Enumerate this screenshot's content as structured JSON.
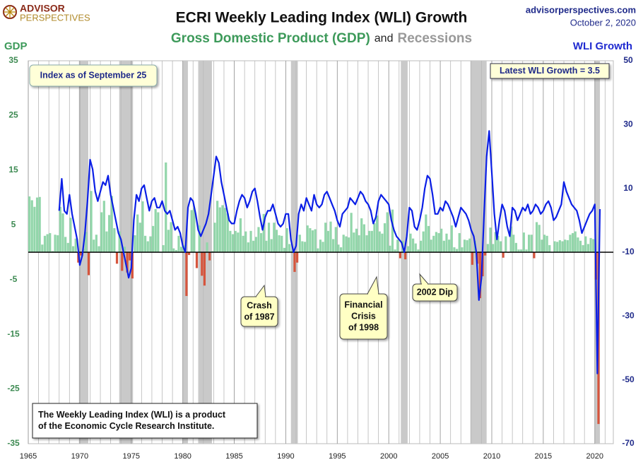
{
  "chart_data": {
    "type": "bar-line",
    "title": "ECRI Weekly Leading Index (WLI) Growth",
    "subtitle": [
      "Gross Domestic Product (GDP)",
      "and",
      "Recessions"
    ],
    "brand": [
      "ADVISOR",
      "PERSPECTIVES"
    ],
    "source": "advisorperspectives.com",
    "date": "October 2, 2020",
    "y_label": "GDP",
    "y2_label": "WLI Growth",
    "xlim": [
      1965,
      2021.8
    ],
    "xticks": [
      1965,
      1970,
      1975,
      1980,
      1985,
      1990,
      1995,
      2000,
      2005,
      2010,
      2015,
      2020
    ],
    "x_minor_ticks": [
      1966,
      1967,
      1968,
      1969,
      1971,
      1972,
      1973,
      1974,
      1976,
      1977,
      1978,
      1979,
      1981,
      1982,
      1983,
      1984,
      1986,
      1987,
      1988,
      1989,
      1991,
      1992,
      1993,
      1994,
      1996,
      1997,
      1998,
      1999,
      2001,
      2002,
      2003,
      2004,
      2006,
      2007,
      2008,
      2009,
      2011,
      2012,
      2013,
      2014,
      2016,
      2017,
      2018,
      2019,
      2021
    ],
    "grid": "x",
    "ylim": [
      -35,
      35
    ],
    "yticks": [
      -35,
      -25,
      -15,
      -5,
      5,
      15,
      25,
      35
    ],
    "y2lim": [
      -70,
      50
    ],
    "y2ticks": [
      -70,
      -50,
      -30,
      -10,
      10,
      30,
      50
    ],
    "recession_color": "#c9c9c9",
    "recessions": [
      [
        1969.92,
        1970.83
      ],
      [
        1973.83,
        1975.17
      ],
      [
        1980.0,
        1980.5
      ],
      [
        1981.5,
        1982.83
      ],
      [
        1990.5,
        1991.17
      ],
      [
        2001.17,
        2001.83
      ],
      [
        2007.92,
        2009.5
      ],
      [
        2020.0,
        2020.5
      ]
    ],
    "x": [
      1965,
      1965.25,
      1965.5,
      1965.75,
      1966,
      1966.25,
      1966.5,
      1966.75,
      1967,
      1967.25,
      1967.5,
      1967.75,
      1968,
      1968.25,
      1968.5,
      1968.75,
      1969,
      1969.25,
      1969.5,
      1969.75,
      1970,
      1970.25,
      1970.5,
      1970.75,
      1971,
      1971.25,
      1971.5,
      1971.75,
      1972,
      1972.25,
      1972.5,
      1972.75,
      1973,
      1973.25,
      1973.5,
      1973.75,
      1974,
      1974.25,
      1974.5,
      1974.75,
      1975,
      1975.25,
      1975.5,
      1975.75,
      1976,
      1976.25,
      1976.5,
      1976.75,
      1977,
      1977.25,
      1977.5,
      1977.75,
      1978,
      1978.25,
      1978.5,
      1978.75,
      1979,
      1979.25,
      1979.5,
      1979.75,
      1980,
      1980.25,
      1980.5,
      1980.75,
      1981,
      1981.25,
      1981.5,
      1981.75,
      1982,
      1982.25,
      1982.5,
      1982.75,
      1983,
      1983.25,
      1983.5,
      1983.75,
      1984,
      1984.25,
      1984.5,
      1984.75,
      1985,
      1985.25,
      1985.5,
      1985.75,
      1986,
      1986.25,
      1986.5,
      1986.75,
      1987,
      1987.25,
      1987.5,
      1987.75,
      1988,
      1988.25,
      1988.5,
      1988.75,
      1989,
      1989.25,
      1989.5,
      1989.75,
      1990,
      1990.25,
      1990.5,
      1990.75,
      1991,
      1991.25,
      1991.5,
      1991.75,
      1992,
      1992.25,
      1992.5,
      1992.75,
      1993,
      1993.25,
      1993.5,
      1993.75,
      1994,
      1994.25,
      1994.5,
      1994.75,
      1995,
      1995.25,
      1995.5,
      1995.75,
      1996,
      1996.25,
      1996.5,
      1996.75,
      1997,
      1997.25,
      1997.5,
      1997.75,
      1998,
      1998.25,
      1998.5,
      1998.75,
      1999,
      1999.25,
      1999.5,
      1999.75,
      2000,
      2000.25,
      2000.5,
      2000.75,
      2001,
      2001.25,
      2001.5,
      2001.75,
      2002,
      2002.25,
      2002.5,
      2002.75,
      2003,
      2003.25,
      2003.5,
      2003.75,
      2004,
      2004.25,
      2004.5,
      2004.75,
      2005,
      2005.25,
      2005.5,
      2005.75,
      2006,
      2006.25,
      2006.5,
      2006.75,
      2007,
      2007.25,
      2007.5,
      2007.75,
      2008,
      2008.25,
      2008.5,
      2008.75,
      2009,
      2009.25,
      2009.5,
      2009.75,
      2010,
      2010.25,
      2010.5,
      2010.75,
      2011,
      2011.25,
      2011.5,
      2011.75,
      2012,
      2012.25,
      2012.5,
      2012.75,
      2013,
      2013.25,
      2013.5,
      2013.75,
      2014,
      2014.25,
      2014.5,
      2014.75,
      2015,
      2015.25,
      2015.5,
      2015.75,
      2016,
      2016.25,
      2016.5,
      2016.75,
      2017,
      2017.25,
      2017.5,
      2017.75,
      2018,
      2018.25,
      2018.5,
      2018.75,
      2019,
      2019.25,
      2019.5,
      2019.75,
      2020,
      2020.25,
      2020.5
    ],
    "series": [
      {
        "name": "GDP",
        "type": "bar",
        "axis": "y",
        "color": "#92d6aa",
        "negative_color": "#d6553d",
        "values": [
          10.2,
          9.5,
          8.3,
          10.0,
          10.1,
          1.4,
          3.0,
          3.3,
          3.5,
          0.2,
          3.2,
          3.1,
          8.3,
          7.1,
          2.8,
          1.7,
          6.3,
          1.1,
          2.5,
          -1.9,
          -0.6,
          0.6,
          3.7,
          -4.2,
          11.2,
          2.3,
          3.2,
          1.1,
          7.3,
          9.4,
          3.8,
          6.8,
          10.3,
          4.4,
          -2.1,
          3.8,
          -3.4,
          1.0,
          -3.7,
          -1.5,
          -4.8,
          3.1,
          6.9,
          5.4,
          9.3,
          3.0,
          2.0,
          2.9,
          4.8,
          7.9,
          7.3,
          0.1,
          1.3,
          16.4,
          4.1,
          5.5,
          0.7,
          0.4,
          3.0,
          1.0,
          1.3,
          -8.0,
          -0.5,
          7.7,
          8.1,
          -2.9,
          4.9,
          -4.3,
          -6.1,
          1.8,
          -1.5,
          0.2,
          5.4,
          9.4,
          8.2,
          8.6,
          8.1,
          7.1,
          3.9,
          3.3,
          3.9,
          3.6,
          6.2,
          3.0,
          3.8,
          1.8,
          3.9,
          2.1,
          2.8,
          4.6,
          3.5,
          7.0,
          2.1,
          5.4,
          2.4,
          5.4,
          4.1,
          3.1,
          3.0,
          0.8,
          4.4,
          1.5,
          0.3,
          -3.6,
          -1.9,
          3.2,
          2.0,
          1.9,
          4.9,
          4.4,
          4.0,
          4.2,
          0.7,
          2.3,
          1.9,
          5.4,
          3.9,
          5.6,
          2.4,
          4.6,
          1.4,
          0.9,
          3.2,
          2.9,
          2.7,
          7.2,
          3.6,
          4.3,
          3.1,
          6.2,
          5.1,
          3.1,
          3.9,
          3.9,
          5.3,
          6.7,
          3.8,
          3.4,
          5.3,
          7.3,
          1.2,
          7.8,
          0.5,
          2.3,
          -1.1,
          2.1,
          -1.3,
          1.1,
          3.4,
          2.5,
          1.6,
          0.5,
          2.1,
          3.8,
          6.9,
          4.8,
          2.3,
          3.0,
          3.7,
          3.5,
          4.3,
          2.1,
          3.4,
          2.3,
          4.9,
          0.9,
          0.6,
          3.5,
          0.9,
          2.3,
          2.2,
          2.5,
          -2.3,
          2.1,
          -2.1,
          -8.4,
          -4.4,
          -0.6,
          1.5,
          4.5,
          1.5,
          3.7,
          3.0,
          2.0,
          -1.0,
          2.9,
          -0.1,
          4.7,
          3.2,
          1.7,
          0.5,
          0.5,
          3.6,
          0.5,
          3.2,
          3.2,
          -1.1,
          5.5,
          5.0,
          2.3,
          3.2,
          3.0,
          1.3,
          0.1,
          2.0,
          1.9,
          2.2,
          2.0,
          2.3,
          2.2,
          3.2,
          3.5,
          3.8,
          2.7,
          2.1,
          1.3,
          2.9,
          1.5,
          2.6,
          2.4,
          -5.0,
          -31.4,
          null
        ]
      },
      {
        "name": "WLI Growth",
        "type": "line",
        "axis": "y2",
        "color": "#0b1fe6",
        "values": [
          null,
          null,
          null,
          null,
          null,
          null,
          null,
          null,
          null,
          null,
          null,
          null,
          3,
          13,
          3,
          2,
          8,
          2,
          -2,
          -6,
          -14,
          -11,
          -4,
          6,
          19,
          16,
          9,
          6,
          9,
          12,
          11,
          14,
          8,
          4,
          0,
          -4,
          -6,
          -10,
          -14,
          -18,
          -15,
          0,
          8,
          6,
          10,
          11,
          7,
          3,
          6,
          7,
          4,
          4,
          6,
          3,
          2,
          3,
          0,
          -3,
          -2,
          -4,
          -8,
          -10,
          4,
          7,
          6,
          2,
          -3,
          -5,
          -3,
          -1,
          2,
          8,
          14,
          20,
          18,
          12,
          8,
          4,
          0,
          -1,
          -1,
          3,
          6,
          8,
          7,
          4,
          6,
          9,
          10,
          6,
          1,
          -3,
          1,
          3,
          3,
          5,
          2,
          -1,
          -2,
          -1,
          2,
          2,
          -6,
          -10,
          -8,
          2,
          5,
          3,
          7,
          5,
          3,
          8,
          5,
          4,
          5,
          8,
          9,
          7,
          5,
          3,
          0,
          -2,
          2,
          3,
          4,
          7,
          6,
          5,
          7,
          9,
          8,
          6,
          5,
          3,
          -1,
          1,
          6,
          8,
          7,
          6,
          5,
          0,
          -3,
          -5,
          -6,
          -7,
          -10,
          -5,
          4,
          3,
          -2,
          -3,
          0,
          4,
          10,
          14,
          13,
          8,
          2,
          2,
          4,
          3,
          6,
          5,
          3,
          1,
          -2,
          1,
          4,
          3,
          2,
          0,
          -3,
          -5,
          -10,
          -25,
          -18,
          2,
          20,
          28,
          15,
          2,
          -6,
          0,
          5,
          3,
          -2,
          -5,
          4,
          3,
          0,
          2,
          4,
          3,
          5,
          2,
          3,
          5,
          4,
          2,
          3,
          5,
          6,
          4,
          0,
          1,
          3,
          5,
          12,
          9,
          7,
          5,
          4,
          3,
          0,
          -4,
          -2,
          0,
          2,
          3,
          5,
          -48,
          3.5
        ]
      }
    ],
    "annotations": [
      {
        "lines": [
          "Index as of September 25"
        ]
      },
      {
        "lines": [
          "Latest WLI Growth = 3.5"
        ]
      },
      {
        "lines": [
          "Crash",
          "of 1987"
        ]
      },
      {
        "lines": [
          "Financial",
          "Crisis",
          "of 1998"
        ]
      },
      {
        "lines": [
          "2002 Dip"
        ]
      },
      {
        "lines": [
          "The Weekly Leading Index (WLI) is a product",
          "of the Economic Cycle Research Institute."
        ]
      }
    ]
  }
}
